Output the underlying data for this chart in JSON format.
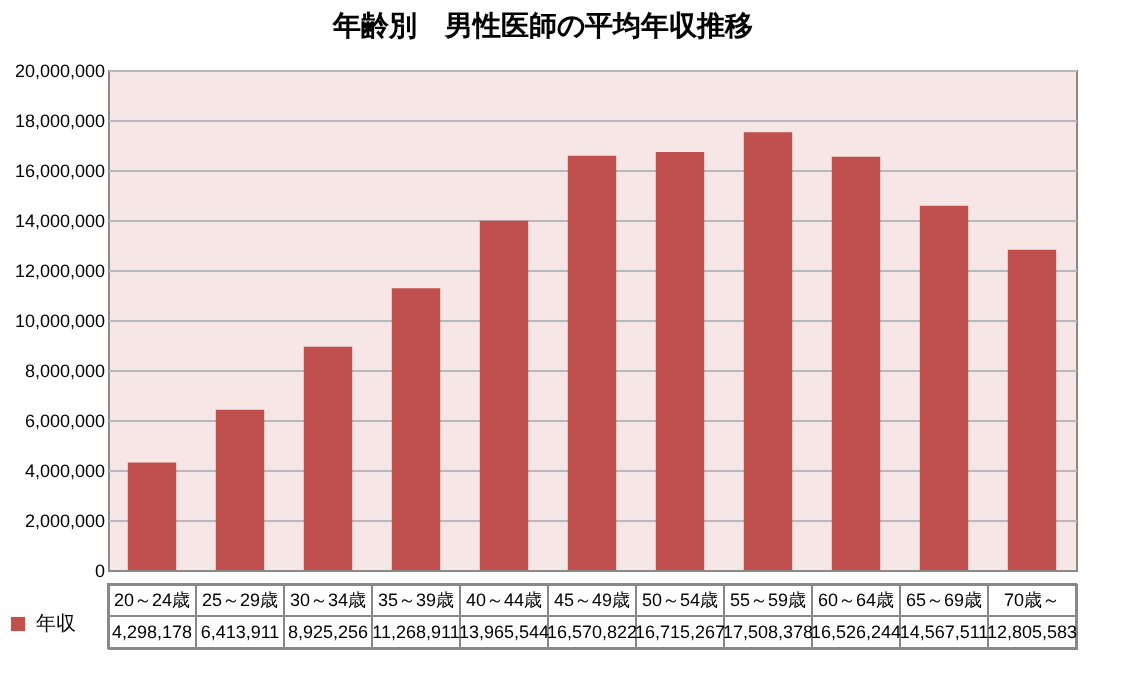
{
  "chart_data": {
    "type": "bar",
    "title": "年齢別　男性医師の平均年収推移",
    "categories": [
      "20～24歳",
      "25～29歳",
      "30～34歳",
      "35～39歳",
      "40～44歳",
      "45～49歳",
      "50～54歳",
      "55～59歳",
      "60～64歳",
      "65～69歳",
      "70歳～"
    ],
    "series": [
      {
        "name": "年収",
        "color": "#c0504d",
        "values": [
          4298178,
          6413911,
          8925256,
          11268911,
          13965544,
          16570822,
          16715267,
          17508378,
          16526244,
          14567511,
          12805583
        ],
        "value_labels": [
          "4,298,178",
          "6,413,911",
          "8,925,256",
          "11,268,911",
          "13,965,544",
          "16,570,822",
          "16,715,267",
          "17,508,378",
          "16,526,244",
          "14,567,511",
          "12,805,583"
        ]
      }
    ],
    "ylim": [
      0,
      20000000
    ],
    "yticks": [
      {
        "value": 0,
        "label": "0"
      },
      {
        "value": 2000000,
        "label": "2,000,000"
      },
      {
        "value": 4000000,
        "label": "4,000,000"
      },
      {
        "value": 6000000,
        "label": "6,000,000"
      },
      {
        "value": 8000000,
        "label": "8,000,000"
      },
      {
        "value": 10000000,
        "label": "10,000,000"
      },
      {
        "value": 12000000,
        "label": "12,000,000"
      },
      {
        "value": 14000000,
        "label": "14,000,000"
      },
      {
        "value": 16000000,
        "label": "16,000,000"
      },
      {
        "value": 18000000,
        "label": "18,000,000"
      },
      {
        "value": 20000000,
        "label": "20,000,000"
      }
    ],
    "grid": "y",
    "legend": "bottom left"
  }
}
